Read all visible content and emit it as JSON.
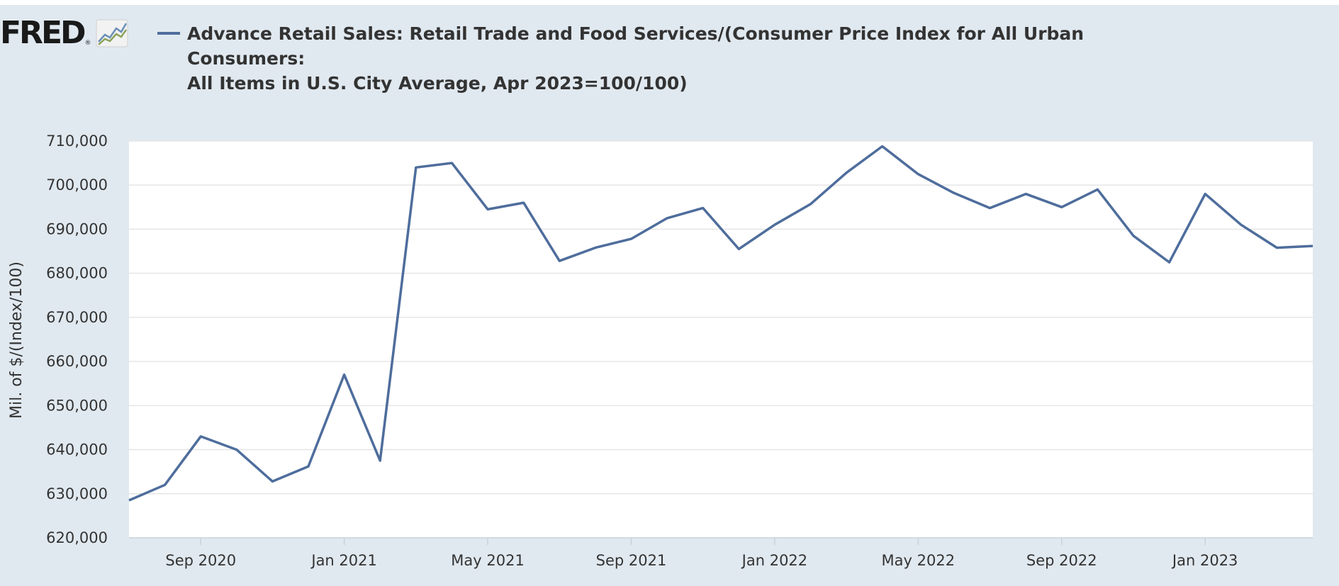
{
  "logo": {
    "text": "FRED",
    "reg": "®"
  },
  "legend": {
    "color": "#4e6d9c",
    "line1": "Advance Retail Sales: Retail Trade and Food Services/(Consumer Price Index for All Urban Consumers:",
    "line2": "All Items in U.S. City Average, Apr 2023=100/100)"
  },
  "chart_data": {
    "type": "line",
    "title": "",
    "xlabel": "",
    "ylabel": "Mil. of $/(Index/100)",
    "ylim": [
      620000,
      710000
    ],
    "yticks": [
      620000,
      630000,
      640000,
      650000,
      660000,
      670000,
      680000,
      690000,
      700000,
      710000
    ],
    "ytick_labels": [
      "620,000",
      "630,000",
      "640,000",
      "650,000",
      "660,000",
      "670,000",
      "680,000",
      "690,000",
      "700,000",
      "710,000"
    ],
    "xticks": [
      "2020-09",
      "2021-01",
      "2021-05",
      "2021-09",
      "2022-01",
      "2022-05",
      "2022-09",
      "2023-01"
    ],
    "xtick_labels": [
      "Sep 2020",
      "Jan 2021",
      "May 2021",
      "Sep 2021",
      "Jan 2022",
      "May 2022",
      "Sep 2022",
      "Jan 2023"
    ],
    "x_range": [
      "2020-07",
      "2023-04"
    ],
    "grid": true,
    "series": [
      {
        "color": "#4e6d9c",
        "x": [
          "2020-07",
          "2020-08",
          "2020-09",
          "2020-10",
          "2020-11",
          "2020-12",
          "2021-01",
          "2021-02",
          "2021-03",
          "2021-04",
          "2021-05",
          "2021-06",
          "2021-07",
          "2021-08",
          "2021-09",
          "2021-10",
          "2021-11",
          "2021-12",
          "2022-01",
          "2022-02",
          "2022-03",
          "2022-04",
          "2022-05",
          "2022-06",
          "2022-07",
          "2022-08",
          "2022-09",
          "2022-10",
          "2022-11",
          "2022-12",
          "2023-01",
          "2023-02",
          "2023-03",
          "2023-04"
        ],
        "values": [
          628500,
          632000,
          643000,
          640000,
          632800,
          636200,
          657000,
          637500,
          704000,
          705000,
          694500,
          696000,
          682800,
          685800,
          687800,
          692500,
          694800,
          685500,
          691000,
          695700,
          702800,
          708800,
          702500,
          698200,
          694800,
          698000,
          695000,
          699000,
          688500,
          682500,
          698000,
          691000,
          685800,
          686200
        ]
      }
    ]
  }
}
